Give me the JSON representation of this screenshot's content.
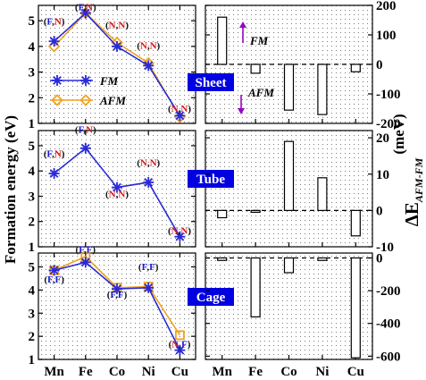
{
  "chart_data": {
    "type": "line",
    "categories": [
      "Mn",
      "Fe",
      "Co",
      "Ni",
      "Cu"
    ],
    "colors": {
      "fm": "#2a2ad8",
      "afm": "#f0a420",
      "F": "#1a1ad0",
      "N": "#d01818",
      "panel_label_bg": "#0000e0",
      "arrow": "#9a00c8"
    },
    "left_ylabel": "Formation energy (eV)",
    "right_ylabel_main": "ΔE",
    "right_ylabel_sub": "AFM-FM",
    "right_ylabel_unit": "(meV)",
    "legend": [
      {
        "key": "fm",
        "label": "FM"
      },
      {
        "key": "afm",
        "label": "AFM"
      }
    ],
    "panels": [
      {
        "name": "Sheet",
        "left": {
          "ylim": [
            1,
            5.6
          ],
          "yticks": [
            1,
            2,
            3,
            4,
            5
          ],
          "series": [
            {
              "name": "FM",
              "values": [
                4.2,
                5.3,
                4.0,
                3.25,
                1.3
              ]
            },
            {
              "name": "AFM",
              "values": [
                4.0,
                5.3,
                4.15,
                3.35,
                1.25
              ]
            }
          ],
          "annotations": [
            {
              "cat": "Mn",
              "spin": [
                "F",
                "N"
              ],
              "y": 4.75
            },
            {
              "cat": "Fe",
              "spin": [
                "F",
                "N"
              ],
              "y": 5.3
            },
            {
              "cat": "Co",
              "spin": [
                "N",
                "N"
              ],
              "y": 4.6
            },
            {
              "cat": "Ni",
              "spin": [
                "N",
                "N"
              ],
              "y": 3.8
            },
            {
              "cat": "Cu",
              "spin": [
                "N",
                "N"
              ],
              "y": 1.35
            }
          ]
        },
        "right": {
          "ylim": [
            -200,
            200
          ],
          "yticks": [
            200,
            100,
            0,
            -100,
            -200
          ],
          "values": [
            160,
            -30,
            -155,
            -170,
            -25
          ],
          "fm_label": "FM",
          "afm_label": "AFM"
        }
      },
      {
        "name": "Tube",
        "left": {
          "ylim": [
            1,
            5.6
          ],
          "yticks": [
            1,
            2,
            3,
            4,
            5
          ],
          "series": [
            {
              "name": "FM",
              "values": [
                3.9,
                4.9,
                3.35,
                3.55,
                1.4
              ]
            }
          ],
          "annotations": [
            {
              "cat": "Mn",
              "spin": [
                "F",
                "N"
              ],
              "y": 4.45
            },
            {
              "cat": "Fe",
              "spin": [
                "F",
                "N"
              ],
              "y": 5.4
            },
            {
              "cat": "Co",
              "spin": [
                "N",
                "N"
              ],
              "y": 2.85
            },
            {
              "cat": "Ni",
              "spin": [
                "N",
                "N"
              ],
              "y": 4.1
            },
            {
              "cat": "Cu",
              "spin": [
                "N",
                "N"
              ],
              "y": 1.4
            }
          ]
        },
        "right": {
          "ylim": [
            -10,
            22
          ],
          "yticks": [
            20,
            10,
            0,
            -10
          ],
          "values": [
            -2,
            -0.5,
            19,
            9,
            -7
          ]
        }
      },
      {
        "name": "Cage",
        "left": {
          "ylim": [
            1,
            5.6
          ],
          "yticks": [
            1,
            2,
            3,
            4,
            5
          ],
          "series": [
            {
              "name": "FM",
              "values": [
                4.85,
                5.2,
                4.05,
                4.1,
                1.4
              ]
            },
            {
              "name": "AFM",
              "values": [
                4.85,
                5.45,
                4.1,
                4.15,
                2.05
              ]
            }
          ],
          "annotations": [
            {
              "cat": "Mn",
              "spin": [
                "F",
                "F"
              ],
              "y": 4.2
            },
            {
              "cat": "Fe",
              "spin": [
                "F",
                "F"
              ],
              "y": 5.5
            },
            {
              "cat": "Co",
              "spin": [
                "F",
                "F"
              ],
              "y": 3.55
            },
            {
              "cat": "Ni",
              "spin": [
                "F",
                "F"
              ],
              "y": 4.75
            },
            {
              "cat": "Cu",
              "spin": [
                "N",
                "F"
              ],
              "y": 1.4
            }
          ]
        },
        "right": {
          "ylim": [
            -620,
            30
          ],
          "yticks": [
            0,
            -200,
            -400,
            -600
          ],
          "values": [
            -15,
            -360,
            -90,
            -15,
            -610
          ]
        }
      }
    ]
  }
}
